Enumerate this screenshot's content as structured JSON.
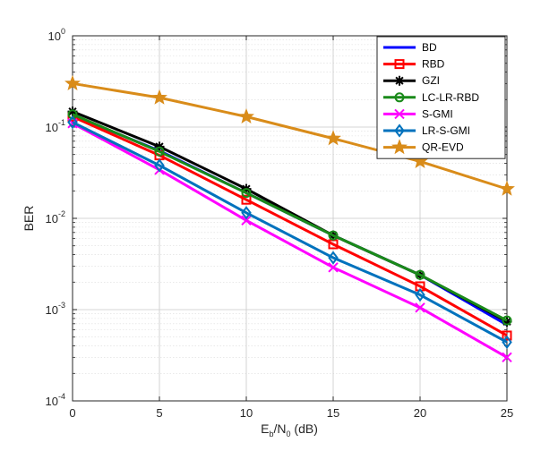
{
  "chart_data": {
    "type": "line",
    "yscale": "log",
    "xlabel": {
      "base": "E",
      "sub1": "b",
      "mid": "/N",
      "sub2": "0",
      "tail": " (dB)"
    },
    "ylabel": "BER",
    "xlim": [
      0,
      25
    ],
    "ylim": [
      0.0001,
      1
    ],
    "grid": true,
    "legend_position": "top-right",
    "x": [
      0,
      5,
      10,
      15,
      20,
      25
    ],
    "x_ticks": [
      "0",
      "5",
      "10",
      "15",
      "20",
      "25"
    ],
    "y_ticks": [
      {
        "value": 1,
        "base": "10",
        "exp": "0"
      },
      {
        "value": 0.1,
        "base": "10",
        "exp": "-1"
      },
      {
        "value": 0.01,
        "base": "10",
        "exp": "-2"
      },
      {
        "value": 0.001,
        "base": "10",
        "exp": "-3"
      },
      {
        "value": 0.0001,
        "base": "10",
        "exp": "-4"
      }
    ],
    "series": [
      {
        "name": "BD",
        "color": "#0000ff",
        "marker": "none",
        "values": [
          0.135,
          0.055,
          0.019,
          0.0065,
          0.0024,
          0.00068
        ]
      },
      {
        "name": "RBD",
        "color": "#ff0000",
        "marker": "square",
        "values": [
          0.13,
          0.049,
          0.016,
          0.0052,
          0.0018,
          0.00052
        ]
      },
      {
        "name": "GZI",
        "color": "#000000",
        "marker": "asterisk",
        "values": [
          0.148,
          0.061,
          0.021,
          0.0065,
          0.0024,
          0.00074
        ]
      },
      {
        "name": "LC-LR-RBD",
        "color": "#1a8a1a",
        "marker": "circle",
        "values": [
          0.138,
          0.054,
          0.019,
          0.0065,
          0.0024,
          0.00076
        ]
      },
      {
        "name": "S-GMI",
        "color": "#ff00ff",
        "marker": "x",
        "values": [
          0.11,
          0.034,
          0.0095,
          0.0029,
          0.00105,
          0.0003
        ]
      },
      {
        "name": "LR-S-GMI",
        "color": "#0072bd",
        "marker": "diamond",
        "values": [
          0.113,
          0.038,
          0.0115,
          0.0037,
          0.00145,
          0.00044
        ]
      },
      {
        "name": "QR-EVD",
        "color": "#d98c1a",
        "marker": "star",
        "values": [
          0.3,
          0.21,
          0.13,
          0.075,
          0.042,
          0.021
        ]
      }
    ]
  }
}
